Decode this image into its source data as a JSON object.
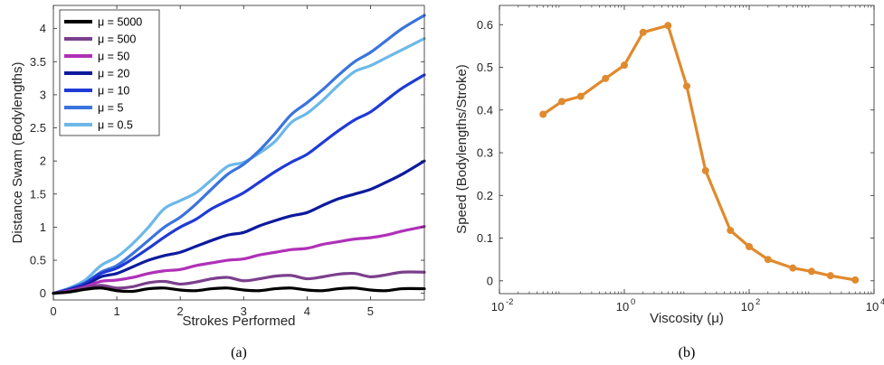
{
  "chart_data": [
    {
      "type": "line",
      "caption": "(a)",
      "xlabel": "Strokes Performed",
      "ylabel": "Distance Swam (Bodylengths)",
      "xlim": [
        0,
        5.85
      ],
      "ylim": [
        -0.1,
        4.35
      ],
      "xticks": [
        {
          "v": 0,
          "label": "0"
        },
        {
          "v": 1,
          "label": "1"
        },
        {
          "v": 2,
          "label": "2"
        },
        {
          "v": 3,
          "label": "3"
        },
        {
          "v": 4,
          "label": "4"
        },
        {
          "v": 5,
          "label": "5"
        }
      ],
      "yticks": [
        {
          "v": 0,
          "label": "0"
        },
        {
          "v": 0.5,
          "label": "0.5"
        },
        {
          "v": 1,
          "label": "1"
        },
        {
          "v": 1.5,
          "label": "1.5"
        },
        {
          "v": 2,
          "label": "2"
        },
        {
          "v": 2.5,
          "label": "2.5"
        },
        {
          "v": 3,
          "label": "3"
        },
        {
          "v": 3.5,
          "label": "3.5"
        },
        {
          "v": 4,
          "label": "4"
        }
      ],
      "legend_position": "top-left",
      "series": [
        {
          "name": "μ = 5000",
          "color": "#000000",
          "x": [
            0,
            0.25,
            0.5,
            0.75,
            1,
            1.25,
            1.5,
            1.75,
            2,
            2.25,
            2.5,
            2.75,
            3,
            3.25,
            3.5,
            3.75,
            4,
            4.25,
            4.5,
            4.75,
            5,
            5.25,
            5.5,
            5.85
          ],
          "y": [
            0,
            0.02,
            0.06,
            0.08,
            0.04,
            0.03,
            0.07,
            0.08,
            0.05,
            0.04,
            0.07,
            0.08,
            0.05,
            0.04,
            0.07,
            0.08,
            0.05,
            0.04,
            0.07,
            0.08,
            0.05,
            0.04,
            0.07,
            0.07
          ]
        },
        {
          "name": "μ = 500",
          "color": "#7b3f8c",
          "x": [
            0,
            0.25,
            0.5,
            0.75,
            1,
            1.25,
            1.5,
            1.75,
            2,
            2.25,
            2.5,
            2.75,
            3,
            3.25,
            3.5,
            3.75,
            4,
            4.25,
            4.5,
            4.75,
            5,
            5.25,
            5.5,
            5.85
          ],
          "y": [
            0,
            0.03,
            0.08,
            0.12,
            0.08,
            0.1,
            0.16,
            0.18,
            0.14,
            0.17,
            0.22,
            0.24,
            0.19,
            0.22,
            0.26,
            0.27,
            0.22,
            0.25,
            0.29,
            0.3,
            0.25,
            0.28,
            0.32,
            0.32
          ]
        },
        {
          "name": "μ = 50",
          "color": "#b030b8",
          "x": [
            0,
            0.25,
            0.5,
            0.75,
            1,
            1.25,
            1.5,
            1.75,
            2,
            2.25,
            2.5,
            2.75,
            3,
            3.25,
            3.5,
            3.75,
            4,
            4.25,
            4.5,
            4.75,
            5,
            5.25,
            5.5,
            5.85
          ],
          "y": [
            0,
            0.04,
            0.1,
            0.18,
            0.2,
            0.24,
            0.3,
            0.34,
            0.36,
            0.42,
            0.46,
            0.5,
            0.52,
            0.58,
            0.62,
            0.66,
            0.68,
            0.74,
            0.78,
            0.82,
            0.84,
            0.88,
            0.94,
            1.01
          ]
        },
        {
          "name": "μ = 20",
          "color": "#0d1a9e",
          "x": [
            0,
            0.25,
            0.5,
            0.75,
            1,
            1.25,
            1.5,
            1.75,
            2,
            2.25,
            2.5,
            2.75,
            3,
            3.25,
            3.5,
            3.75,
            4,
            4.25,
            4.5,
            4.75,
            5,
            5.25,
            5.5,
            5.85
          ],
          "y": [
            0,
            0.05,
            0.12,
            0.25,
            0.3,
            0.4,
            0.5,
            0.57,
            0.62,
            0.71,
            0.8,
            0.88,
            0.92,
            1.02,
            1.1,
            1.17,
            1.22,
            1.33,
            1.43,
            1.5,
            1.57,
            1.68,
            1.8,
            2.0
          ]
        },
        {
          "name": "μ = 10",
          "color": "#1f3ad6",
          "x": [
            0,
            0.25,
            0.5,
            0.75,
            1,
            1.25,
            1.5,
            1.75,
            2,
            2.25,
            2.5,
            2.75,
            3,
            3.25,
            3.5,
            3.75,
            4,
            4.25,
            4.5,
            4.75,
            5,
            5.25,
            5.5,
            5.85
          ],
          "y": [
            0,
            0.06,
            0.15,
            0.3,
            0.38,
            0.52,
            0.68,
            0.85,
            1.0,
            1.12,
            1.28,
            1.4,
            1.52,
            1.68,
            1.84,
            1.98,
            2.1,
            2.28,
            2.46,
            2.62,
            2.74,
            2.92,
            3.1,
            3.3
          ]
        },
        {
          "name": "μ = 5",
          "color": "#3a74dd",
          "x": [
            0,
            0.25,
            0.5,
            0.75,
            1,
            1.25,
            1.5,
            1.75,
            2,
            2.25,
            2.5,
            2.75,
            3,
            3.25,
            3.5,
            3.75,
            4,
            4.25,
            4.5,
            4.75,
            5,
            5.25,
            5.5,
            5.85
          ],
          "y": [
            0,
            0.07,
            0.16,
            0.32,
            0.42,
            0.6,
            0.8,
            1.0,
            1.15,
            1.35,
            1.58,
            1.8,
            1.95,
            2.16,
            2.42,
            2.7,
            2.88,
            3.08,
            3.3,
            3.5,
            3.64,
            3.82,
            4.0,
            4.2
          ]
        },
        {
          "name": "μ = 0.5",
          "color": "#6cb8e8",
          "x": [
            0,
            0.25,
            0.5,
            0.75,
            1,
            1.25,
            1.5,
            1.75,
            2,
            2.25,
            2.5,
            2.75,
            3,
            3.25,
            3.5,
            3.75,
            4,
            4.25,
            4.5,
            4.75,
            5,
            5.25,
            5.5,
            5.85
          ],
          "y": [
            0,
            0.08,
            0.2,
            0.42,
            0.55,
            0.75,
            1.0,
            1.28,
            1.4,
            1.52,
            1.72,
            1.92,
            1.98,
            2.12,
            2.3,
            2.58,
            2.72,
            2.92,
            3.15,
            3.35,
            3.44,
            3.56,
            3.68,
            3.85
          ]
        }
      ]
    },
    {
      "type": "line",
      "caption": "(b)",
      "xlabel": "Viscosity (μ)",
      "ylabel": "Speed (Bodylengths/Stroke)",
      "xscale": "log",
      "xlim": [
        0.01,
        10000
      ],
      "ylim": [
        -0.03,
        0.645
      ],
      "xticks": [
        {
          "v": 0.01,
          "base": "10",
          "exp": "-2"
        },
        {
          "v": 1,
          "base": "10",
          "exp": "0"
        },
        {
          "v": 100,
          "base": "10",
          "exp": "2"
        },
        {
          "v": 10000,
          "base": "10",
          "exp": "4"
        }
      ],
      "yticks": [
        {
          "v": 0,
          "label": "0"
        },
        {
          "v": 0.1,
          "label": "0.1"
        },
        {
          "v": 0.2,
          "label": "0.2"
        },
        {
          "v": 0.3,
          "label": "0.3"
        },
        {
          "v": 0.4,
          "label": "0.4"
        },
        {
          "v": 0.5,
          "label": "0.5"
        },
        {
          "v": 0.6,
          "label": "0.6"
        }
      ],
      "series": [
        {
          "color": "#e08a2e",
          "x": [
            0.05,
            0.1,
            0.2,
            0.5,
            1,
            2,
            5,
            10,
            20,
            50,
            100,
            200,
            500,
            1000,
            2000,
            5000
          ],
          "y": [
            0.39,
            0.42,
            0.432,
            0.474,
            0.505,
            0.582,
            0.598,
            0.456,
            0.258,
            0.118,
            0.08,
            0.05,
            0.03,
            0.022,
            0.012,
            0.002
          ]
        }
      ]
    }
  ]
}
